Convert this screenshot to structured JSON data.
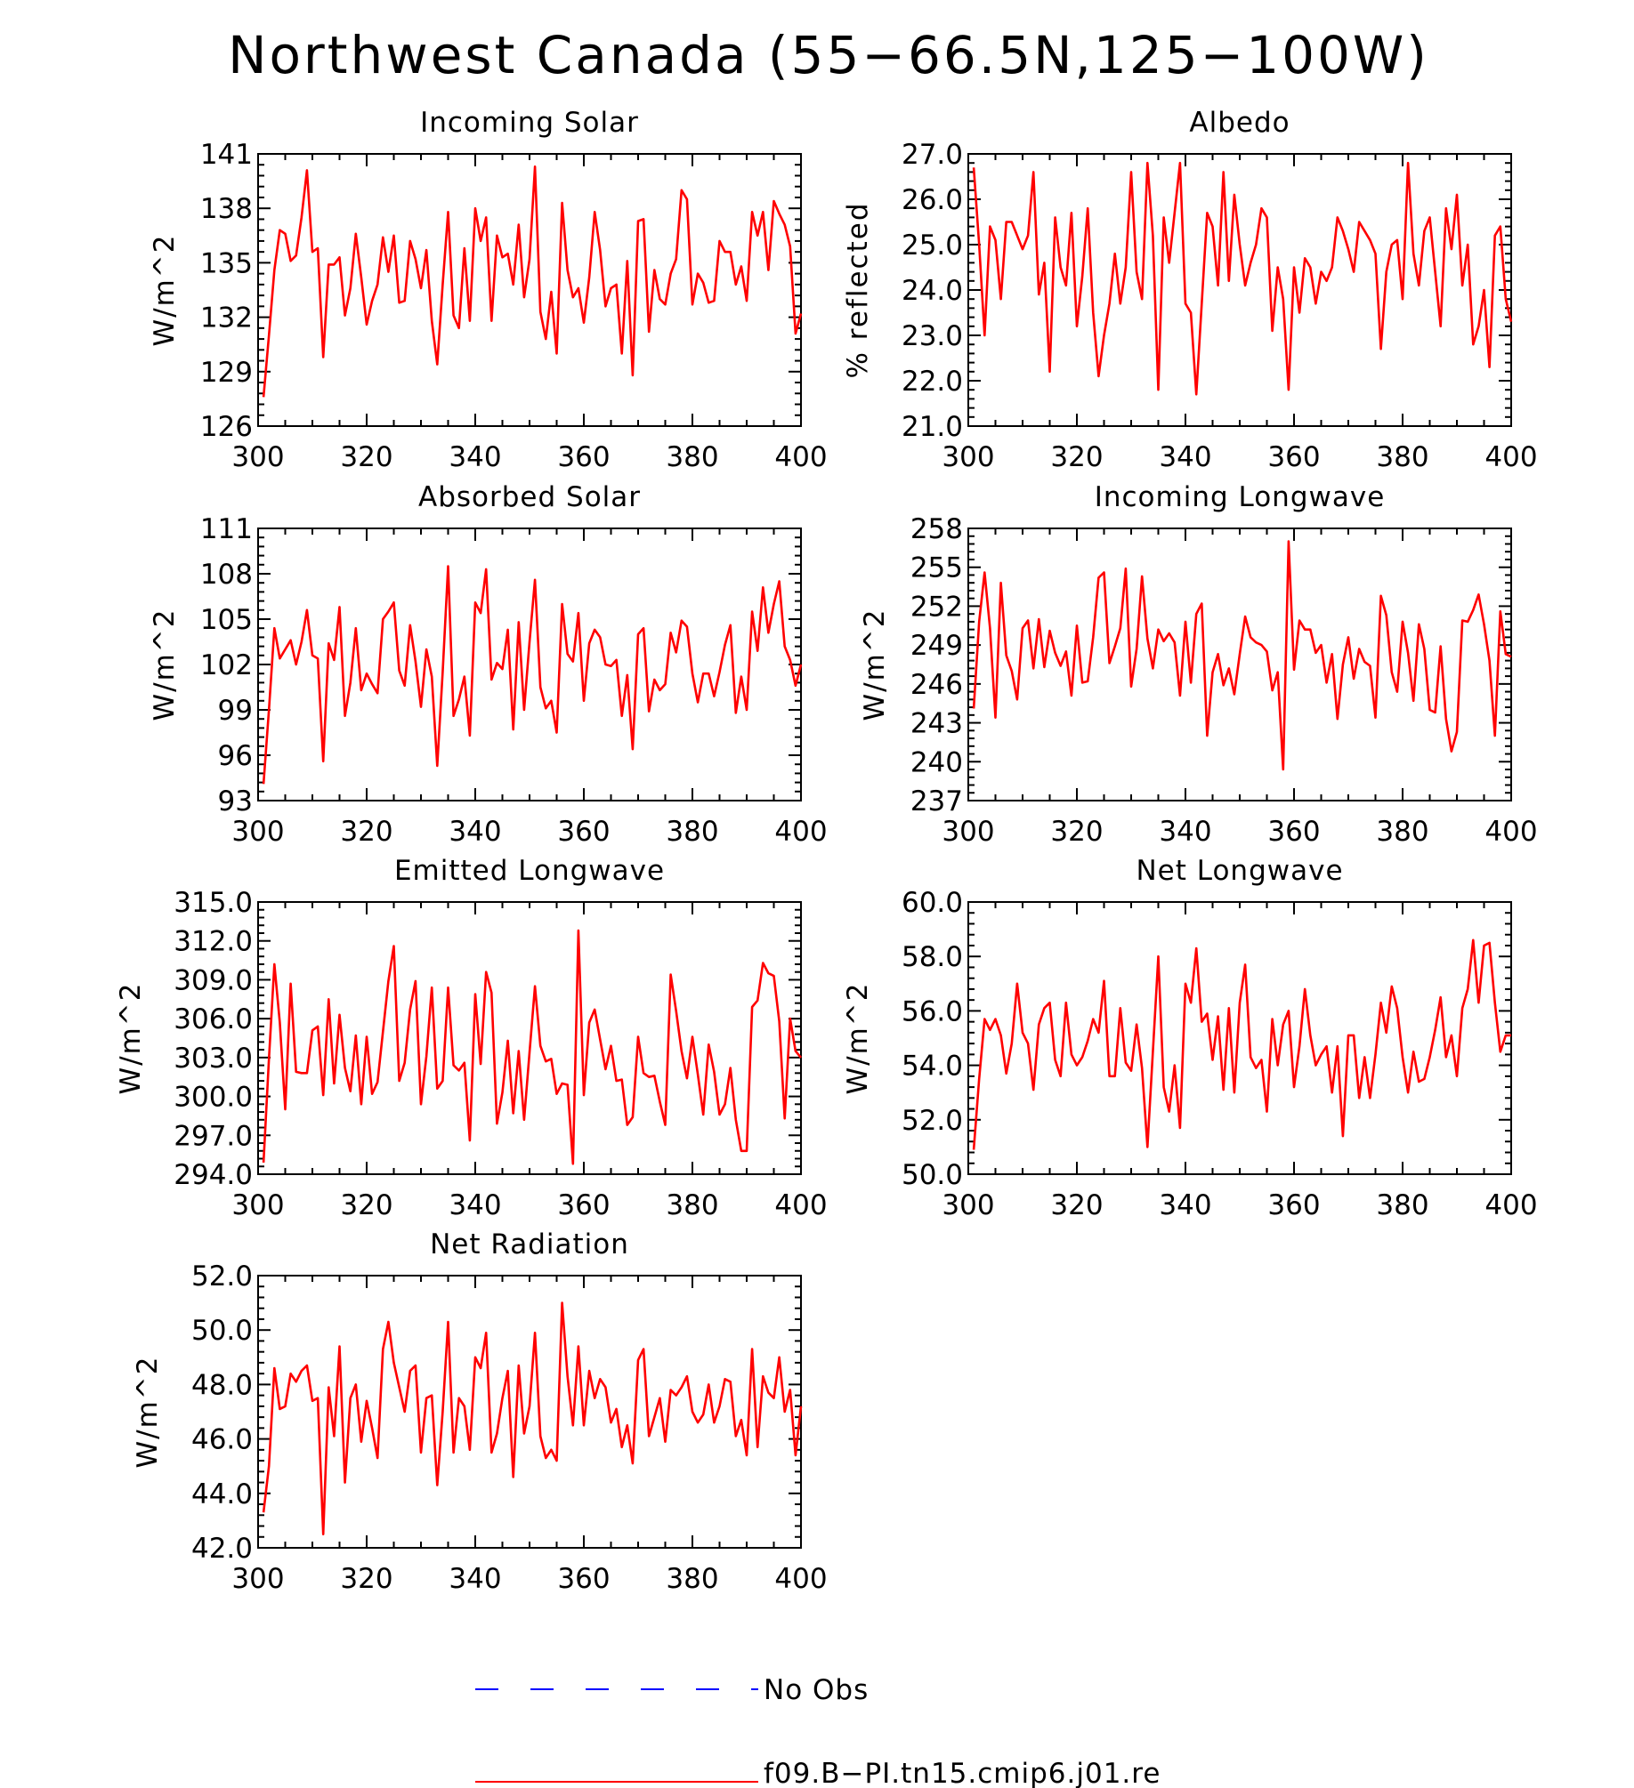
{
  "title": "Northwest Canada (55−66.5N,125−100W)",
  "colors": {
    "model": "#ff0000",
    "obs": "#0000ff",
    "axis": "#000000"
  },
  "legend": {
    "entries": [
      {
        "label": "No Obs",
        "style": "dashed",
        "color": "#0000ff"
      },
      {
        "label": "f09.B−PI.tn15.cmip6.j01.re",
        "style": "solid",
        "color": "#ff0000"
      }
    ]
  },
  "chart_data": [
    {
      "type": "line",
      "title": "Incoming Solar",
      "ylabel": "W/m^2",
      "xlim": [
        300,
        400
      ],
      "ylim": [
        126,
        141
      ],
      "xticks": [
        300,
        320,
        340,
        360,
        380,
        400
      ],
      "xtick_labels": [
        "300",
        "320",
        "340",
        "360",
        "380",
        "400"
      ],
      "yticks": [
        126,
        129,
        132,
        135,
        138,
        141
      ],
      "ytick_labels": [
        "126",
        "129",
        "132",
        "135",
        "138",
        "141"
      ],
      "x_start": 301,
      "series": [
        {
          "values": [
            127.6,
            131.0,
            134.6,
            136.8,
            136.6,
            135.1,
            135.4,
            137.5,
            140.1,
            135.6,
            135.8,
            129.8,
            134.9,
            134.9,
            135.3,
            132.1,
            133.6,
            136.6,
            134.2,
            131.6,
            132.9,
            133.8,
            136.4,
            134.5,
            136.5,
            132.8,
            132.9,
            136.2,
            135.2,
            133.6,
            135.7,
            131.8,
            129.4,
            133.8,
            137.8,
            132.1,
            131.4,
            135.8,
            131.8,
            138.0,
            136.2,
            137.5,
            131.8,
            136.5,
            135.3,
            135.5,
            133.8,
            137.1,
            133.1,
            135.2,
            140.3,
            132.3,
            130.8,
            133.4,
            130.0,
            138.3,
            134.6,
            133.1,
            133.6,
            131.7,
            134.2,
            137.8,
            135.7,
            132.6,
            133.6,
            133.8,
            130.0,
            135.1,
            128.8,
            137.3,
            137.4,
            131.2,
            134.6,
            133.0,
            132.7,
            134.4,
            135.2,
            139.0,
            138.5,
            132.7,
            134.4,
            133.9,
            132.8,
            132.9,
            136.2,
            135.6,
            135.6,
            133.8,
            134.8,
            132.9,
            137.8,
            136.5,
            137.8,
            134.6,
            138.4,
            137.7,
            137.1,
            135.9,
            131.1,
            132.2
          ]
        }
      ]
    },
    {
      "type": "line",
      "title": "Albedo",
      "ylabel": "% reflected",
      "xlim": [
        300,
        400
      ],
      "ylim": [
        21.0,
        27.0
      ],
      "xticks": [
        300,
        320,
        340,
        360,
        380,
        400
      ],
      "xtick_labels": [
        "300",
        "320",
        "340",
        "360",
        "380",
        "400"
      ],
      "yticks": [
        21.0,
        22.0,
        23.0,
        24.0,
        25.0,
        26.0,
        27.0
      ],
      "ytick_labels": [
        "21.0",
        "22.0",
        "23.0",
        "24.0",
        "25.0",
        "26.0",
        "27.0"
      ],
      "x_start": 301,
      "series": [
        {
          "values": [
            26.7,
            25.0,
            23.0,
            25.4,
            25.1,
            23.8,
            25.5,
            25.5,
            25.2,
            24.9,
            25.2,
            26.6,
            23.9,
            24.6,
            22.2,
            25.6,
            24.5,
            24.1,
            25.7,
            23.2,
            24.3,
            25.8,
            23.5,
            22.1,
            23.0,
            23.7,
            24.8,
            23.7,
            24.5,
            26.6,
            24.4,
            23.8,
            26.8,
            25.2,
            21.8,
            25.6,
            24.6,
            25.7,
            26.8,
            23.7,
            23.5,
            21.7,
            23.7,
            25.7,
            25.4,
            24.1,
            26.6,
            24.2,
            26.1,
            25.0,
            24.1,
            24.6,
            25.0,
            25.8,
            25.6,
            23.1,
            24.5,
            23.8,
            21.8,
            24.5,
            23.5,
            24.7,
            24.5,
            23.7,
            24.4,
            24.2,
            24.5,
            25.6,
            25.3,
            24.9,
            24.4,
            25.5,
            25.3,
            25.1,
            24.8,
            22.7,
            24.4,
            25.0,
            25.1,
            23.8,
            26.8,
            24.8,
            24.1,
            25.3,
            25.6,
            24.4,
            23.2,
            25.8,
            24.9,
            26.1,
            24.1,
            25.0,
            22.8,
            23.2,
            24.0,
            22.3,
            25.2,
            25.4,
            23.8,
            23.3
          ]
        }
      ]
    },
    {
      "type": "line",
      "title": "Absorbed Solar",
      "ylabel": "W/m^2",
      "xlim": [
        300,
        400
      ],
      "ylim": [
        93,
        111
      ],
      "xticks": [
        300,
        320,
        340,
        360,
        380,
        400
      ],
      "xtick_labels": [
        "300",
        "320",
        "340",
        "360",
        "380",
        "400"
      ],
      "yticks": [
        93,
        96,
        99,
        102,
        105,
        108,
        111
      ],
      "ytick_labels": [
        "93",
        "96",
        "99",
        "102",
        "105",
        "108",
        "111"
      ],
      "x_start": 301,
      "series": [
        {
          "values": [
            94.1,
            99.0,
            104.4,
            102.4,
            103.0,
            103.6,
            102.0,
            103.5,
            105.6,
            102.6,
            102.4,
            95.6,
            103.4,
            102.3,
            105.8,
            98.6,
            100.8,
            104.4,
            100.3,
            101.4,
            100.7,
            100.1,
            105.0,
            105.5,
            106.1,
            101.6,
            100.6,
            104.6,
            102.2,
            99.2,
            103.0,
            101.2,
            95.3,
            101.5,
            108.5,
            98.6,
            99.7,
            101.2,
            97.3,
            106.1,
            105.4,
            108.3,
            101.0,
            102.1,
            101.7,
            104.3,
            97.7,
            104.8,
            99.0,
            103.5,
            107.6,
            100.5,
            99.1,
            99.6,
            97.5,
            106.0,
            102.7,
            102.2,
            105.4,
            99.6,
            103.4,
            104.3,
            103.8,
            102.0,
            101.9,
            102.3,
            98.6,
            101.3,
            96.4,
            104.0,
            104.4,
            98.9,
            101.0,
            100.3,
            100.7,
            104.1,
            102.8,
            104.9,
            104.5,
            101.4,
            99.5,
            101.4,
            101.4,
            99.9,
            101.5,
            103.3,
            104.6,
            98.8,
            101.2,
            99.0,
            105.5,
            102.9,
            107.1,
            104.1,
            106.0,
            107.5,
            103.2,
            102.3,
            100.6,
            102.0
          ]
        }
      ]
    },
    {
      "type": "line",
      "title": "Incoming Longwave",
      "ylabel": "W/m^2",
      "xlim": [
        300,
        400
      ],
      "ylim": [
        237,
        258
      ],
      "xticks": [
        300,
        320,
        340,
        360,
        380,
        400
      ],
      "xtick_labels": [
        "300",
        "320",
        "340",
        "360",
        "380",
        "400"
      ],
      "yticks": [
        237,
        240,
        243,
        246,
        249,
        252,
        255,
        258
      ],
      "ytick_labels": [
        "237",
        "240",
        "243",
        "246",
        "249",
        "252",
        "255",
        "258"
      ],
      "x_start": 301,
      "series": [
        {
          "values": [
            244.1,
            250.8,
            254.6,
            250.3,
            243.4,
            253.8,
            248.2,
            247.0,
            244.8,
            250.3,
            250.9,
            247.2,
            251.0,
            247.3,
            250.1,
            248.4,
            247.4,
            248.5,
            245.1,
            250.5,
            246.1,
            246.2,
            249.6,
            254.2,
            254.6,
            247.6,
            248.9,
            250.3,
            254.9,
            245.8,
            248.7,
            254.3,
            249.5,
            247.2,
            250.2,
            249.3,
            249.9,
            249.2,
            245.1,
            250.8,
            246.1,
            251.4,
            252.2,
            242.0,
            246.9,
            248.3,
            245.9,
            247.2,
            245.2,
            248.3,
            251.2,
            249.6,
            249.2,
            249.0,
            248.5,
            245.5,
            246.9,
            239.4,
            257.0,
            247.1,
            250.9,
            250.2,
            250.2,
            248.4,
            249.0,
            246.1,
            248.3,
            243.3,
            247.5,
            249.6,
            246.4,
            248.7,
            247.7,
            247.4,
            243.4,
            252.8,
            251.3,
            246.9,
            245.4,
            250.8,
            248.4,
            244.7,
            250.6,
            248.7,
            244.0,
            243.8,
            248.9,
            243.3,
            240.8,
            242.3,
            250.9,
            250.8,
            251.7,
            252.9,
            250.6,
            247.8,
            242.0,
            251.6,
            248.3,
            248.1
          ]
        }
      ]
    },
    {
      "type": "line",
      "title": "Emitted Longwave",
      "ylabel": "W/m^2",
      "xlim": [
        300,
        400
      ],
      "ylim": [
        294.0,
        315.0
      ],
      "xticks": [
        300,
        320,
        340,
        360,
        380,
        400
      ],
      "xtick_labels": [
        "300",
        "320",
        "340",
        "360",
        "380",
        "400"
      ],
      "yticks": [
        294.0,
        297.0,
        300.0,
        303.0,
        306.0,
        309.0,
        312.0,
        315.0
      ],
      "ytick_labels": [
        "294.0",
        "297.0",
        "300.0",
        "303.0",
        "306.0",
        "309.0",
        "312.0",
        "315.0"
      ],
      "x_start": 301,
      "series": [
        {
          "values": [
            294.9,
            302.9,
            310.2,
            305.7,
            299.0,
            308.7,
            301.9,
            301.8,
            301.8,
            305.1,
            305.4,
            300.1,
            307.5,
            301.0,
            306.3,
            302.2,
            300.4,
            304.7,
            299.4,
            304.6,
            300.2,
            301.1,
            305.0,
            308.9,
            311.6,
            301.2,
            302.6,
            306.7,
            308.9,
            299.4,
            303.1,
            308.4,
            300.6,
            301.2,
            308.4,
            302.4,
            302.0,
            302.6,
            296.6,
            307.9,
            302.5,
            309.6,
            308.0,
            297.9,
            300.3,
            304.3,
            298.7,
            303.5,
            298.2,
            303.4,
            308.5,
            303.9,
            302.7,
            302.9,
            300.2,
            301.0,
            300.9,
            294.8,
            312.8,
            300.1,
            305.7,
            306.7,
            304.4,
            302.1,
            303.9,
            301.2,
            301.3,
            297.8,
            298.4,
            304.6,
            301.8,
            301.5,
            301.6,
            299.6,
            297.8,
            309.4,
            306.6,
            303.5,
            301.4,
            304.6,
            301.7,
            298.6,
            304.0,
            301.9,
            298.6,
            299.4,
            302.2,
            298.2,
            295.8,
            295.8,
            306.9,
            307.4,
            310.3,
            309.5,
            309.3,
            305.8,
            298.3,
            306.0,
            303.5,
            303.0
          ]
        }
      ]
    },
    {
      "type": "line",
      "title": "Net Longwave",
      "ylabel": "W/m^2",
      "xlim": [
        300,
        400
      ],
      "ylim": [
        50.0,
        60.0
      ],
      "xticks": [
        300,
        320,
        340,
        360,
        380,
        400
      ],
      "xtick_labels": [
        "300",
        "320",
        "340",
        "360",
        "380",
        "400"
      ],
      "yticks": [
        50.0,
        52.0,
        54.0,
        56.0,
        58.0,
        60.0
      ],
      "ytick_labels": [
        "50.0",
        "52.0",
        "54.0",
        "56.0",
        "58.0",
        "60.0"
      ],
      "x_start": 301,
      "series": [
        {
          "values": [
            50.9,
            53.5,
            55.7,
            55.3,
            55.7,
            55.1,
            53.7,
            54.8,
            57.0,
            55.2,
            54.8,
            53.1,
            55.5,
            56.1,
            56.3,
            54.2,
            53.6,
            56.3,
            54.4,
            54.0,
            54.3,
            54.9,
            55.7,
            55.2,
            57.1,
            53.6,
            53.6,
            56.1,
            54.1,
            53.8,
            55.5,
            53.9,
            51.0,
            54.5,
            58.0,
            53.2,
            52.3,
            54.0,
            51.7,
            57.0,
            56.3,
            58.3,
            55.6,
            55.9,
            54.2,
            55.8,
            53.1,
            56.1,
            53.0,
            56.3,
            57.7,
            54.3,
            53.9,
            54.2,
            52.3,
            55.7,
            54.0,
            55.5,
            56.0,
            53.2,
            54.7,
            56.8,
            55.1,
            54.0,
            54.4,
            54.7,
            53.0,
            54.7,
            51.4,
            55.1,
            55.1,
            52.8,
            54.3,
            52.8,
            54.4,
            56.3,
            55.2,
            56.9,
            56.1,
            54.3,
            53.0,
            54.5,
            53.4,
            53.5,
            54.3,
            55.3,
            56.5,
            54.3,
            55.1,
            53.6,
            56.1,
            56.8,
            58.6,
            56.3,
            58.4,
            58.5,
            56.3,
            54.5,
            55.1,
            55.1
          ]
        }
      ]
    },
    {
      "type": "line",
      "title": "Net Radiation",
      "ylabel": "W/m^2",
      "xlim": [
        300,
        400
      ],
      "ylim": [
        42.0,
        52.0
      ],
      "xticks": [
        300,
        320,
        340,
        360,
        380,
        400
      ],
      "xtick_labels": [
        "300",
        "320",
        "340",
        "360",
        "380",
        "400"
      ],
      "yticks": [
        42.0,
        44.0,
        46.0,
        48.0,
        50.0,
        52.0
      ],
      "ytick_labels": [
        "42.0",
        "44.0",
        "46.0",
        "48.0",
        "50.0",
        "52.0"
      ],
      "x_start": 301,
      "series": [
        {
          "values": [
            43.3,
            45.0,
            48.6,
            47.1,
            47.2,
            48.4,
            48.1,
            48.5,
            48.7,
            47.4,
            47.5,
            42.5,
            47.9,
            46.1,
            49.4,
            44.4,
            47.5,
            48.0,
            45.9,
            47.4,
            46.4,
            45.3,
            49.3,
            50.3,
            48.8,
            47.9,
            47.0,
            48.5,
            48.7,
            45.5,
            47.5,
            47.6,
            44.3,
            47.0,
            50.3,
            45.5,
            47.5,
            47.2,
            45.6,
            49.0,
            48.6,
            49.9,
            45.5,
            46.2,
            47.5,
            48.5,
            44.6,
            48.7,
            46.2,
            47.2,
            49.9,
            46.1,
            45.3,
            45.6,
            45.2,
            51.0,
            48.3,
            46.5,
            49.4,
            46.5,
            48.5,
            47.5,
            48.2,
            47.9,
            46.6,
            47.1,
            45.7,
            46.5,
            45.1,
            48.9,
            49.3,
            46.1,
            46.8,
            47.5,
            45.9,
            47.8,
            47.6,
            47.9,
            48.3,
            47.0,
            46.6,
            46.9,
            48.0,
            46.6,
            47.2,
            48.2,
            48.1,
            46.1,
            46.7,
            45.4,
            49.3,
            45.7,
            48.3,
            47.7,
            47.5,
            49.0,
            47.0,
            47.8,
            45.4,
            47.2
          ]
        }
      ]
    }
  ]
}
